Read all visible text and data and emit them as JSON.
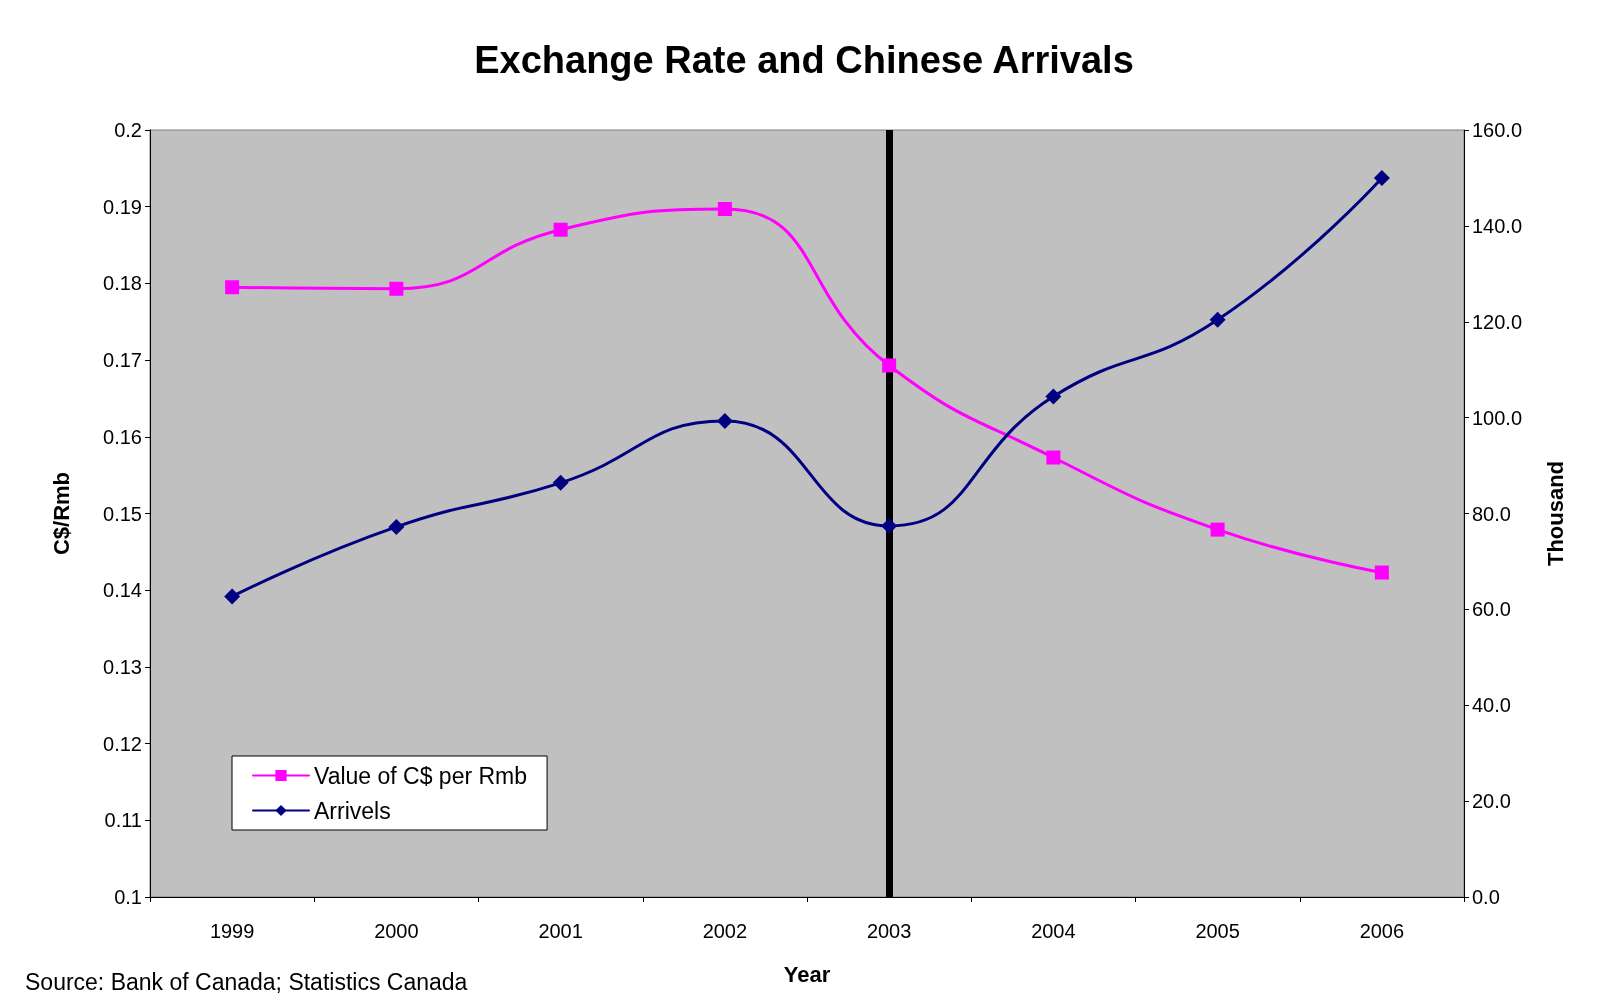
{
  "chart_data": {
    "type": "line",
    "title": "Exchange Rate and Chinese Arrivals",
    "xlabel": "Year",
    "ylabel": "C$/Rmb",
    "y2label": "Thousand",
    "categories": [
      "1999",
      "2000",
      "2001",
      "2002",
      "2003",
      "2004",
      "2005",
      "2006"
    ],
    "series": [
      {
        "name": "Value of C$ per Rmb",
        "color": "#ff00ff",
        "marker": "square",
        "values": [
          0.1795,
          0.1793,
          0.187,
          0.1897,
          0.1693,
          0.1573,
          0.1479,
          0.1423
        ]
      },
      {
        "name": "Arrivels",
        "color": "#000080",
        "marker": "diamond",
        "axis": "y2",
        "values": [
          62.7,
          77.2,
          86.4,
          99.3,
          77.4,
          104.4,
          120.4,
          150.0
        ]
      }
    ],
    "ylim": [
      0.1,
      0.2
    ],
    "yticks": [
      0.1,
      0.11,
      0.12,
      0.13,
      0.14,
      0.15,
      0.16,
      0.17,
      0.18,
      0.19,
      0.2
    ],
    "y2lim": [
      0,
      160
    ],
    "y2ticks": [
      {
        "value": 0,
        "label": "0.0"
      },
      {
        "value": 20,
        "label": "20.0"
      },
      {
        "value": 40,
        "label": "40.0"
      },
      {
        "value": 60,
        "label": "60.0"
      },
      {
        "value": 80,
        "label": "80.0"
      },
      {
        "value": 100,
        "label": "100.0"
      },
      {
        "value": 120,
        "label": "120.0"
      },
      {
        "value": 140,
        "label": "140.0"
      },
      {
        "value": 160,
        "label": "160.0"
      }
    ],
    "ref_lines": [
      {
        "axis": "x",
        "value": "2003",
        "color": "#000000"
      }
    ],
    "annotations": [
      "Source: Bank of Canada; Statistics Canada"
    ],
    "legend": "bottom left",
    "grid": false,
    "line_style": "solid"
  }
}
